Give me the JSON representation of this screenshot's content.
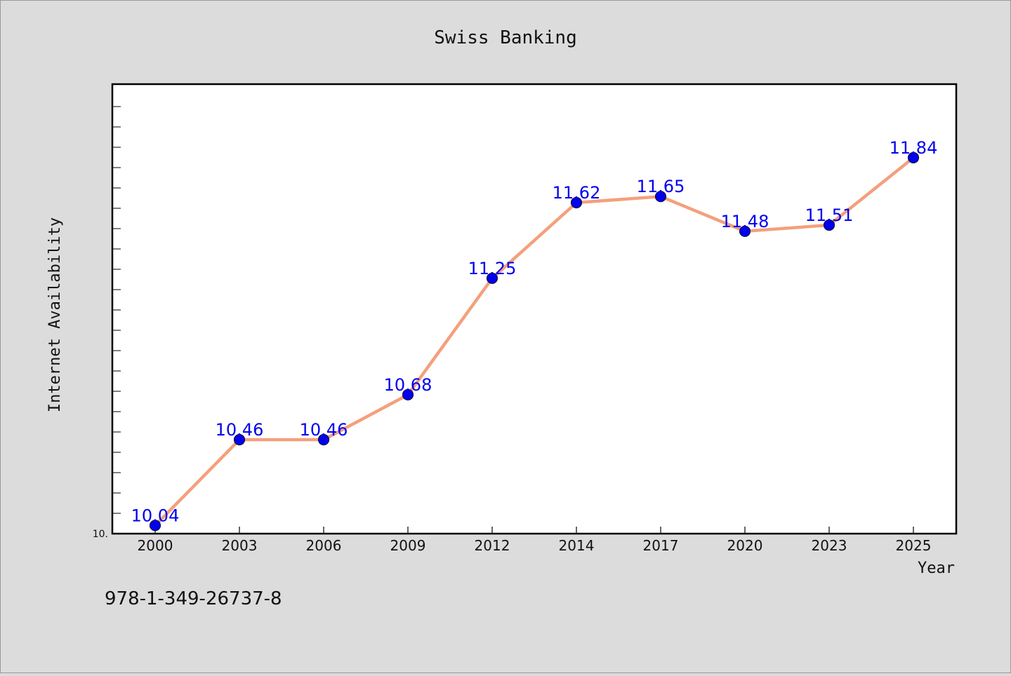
{
  "chart_data": {
    "type": "line",
    "title": "Swiss Banking",
    "xlabel": "Year",
    "ylabel": "Internet Availability",
    "categories": [
      "2000",
      "2003",
      "2006",
      "2009",
      "2012",
      "2014",
      "2017",
      "2020",
      "2023",
      "2025"
    ],
    "series": [
      {
        "values": [
          10.04,
          10.46,
          10.46,
          10.68,
          11.25,
          11.62,
          11.65,
          11.48,
          11.51,
          11.84
        ]
      }
    ],
    "data_labels": [
      "10.04",
      "10.46",
      "10.46",
      "10.68",
      "11.25",
      "11.62",
      "11.65",
      "11.48",
      "11.51",
      "11.84"
    ],
    "ytick_label": "10.",
    "ylim": [
      10.0,
      12.2
    ],
    "grid": false,
    "legend": "none",
    "colors": {
      "line": "#f4a07c",
      "marker": "#0000ee",
      "marker_edge": "#101040",
      "data_label": "#0000ee",
      "plot_background": "#ffffff",
      "page_background": "#dcdcdc"
    }
  },
  "footer": {
    "isbn": "978-1-349-26737-8"
  }
}
